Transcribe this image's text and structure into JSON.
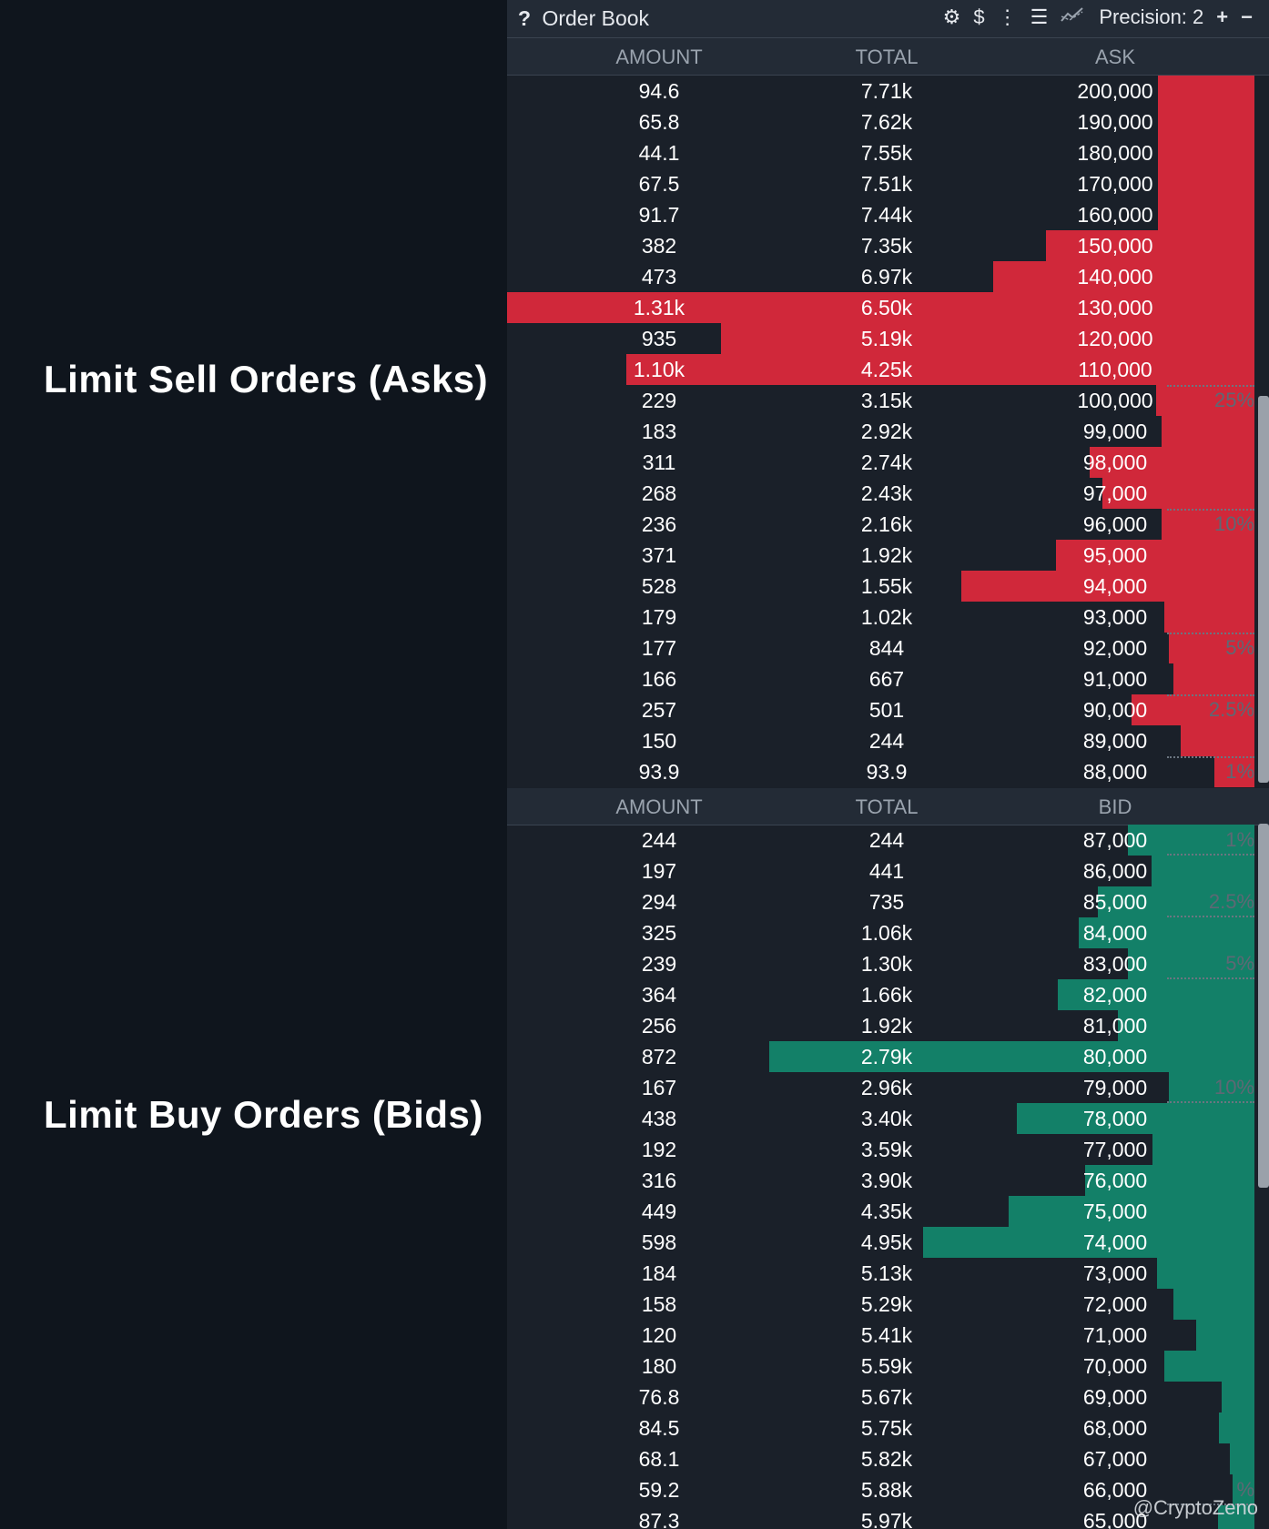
{
  "left_labels": {
    "asks": "Limit Sell Orders (Asks)",
    "bids": "Limit Buy Orders (Bids)"
  },
  "titlebar": {
    "help": "?",
    "title": "Order Book",
    "precision_label": "Precision: 2",
    "icons": [
      "gear-icon",
      "dollar-icon",
      "more-icon",
      "bars-icon",
      "depth-chart-icon",
      "plus-icon",
      "minus-icon"
    ]
  },
  "ask_header": {
    "amount": "AMOUNT",
    "total": "TOTAL",
    "price": "ASK"
  },
  "bid_header": {
    "amount": "AMOUNT",
    "total": "TOTAL",
    "price": "BID"
  },
  "colors": {
    "ask": "#d0283a",
    "bid": "#138068",
    "background": "#1a2029"
  },
  "asks": [
    {
      "amount": "94.6",
      "total": "7.71k",
      "price": "200,000",
      "depth": 0.129,
      "cum": 0.054,
      "pct": ""
    },
    {
      "amount": "65.8",
      "total": "7.62k",
      "price": "190,000",
      "depth": 0.129,
      "cum": 0.036,
      "pct": ""
    },
    {
      "amount": "44.1",
      "total": "7.55k",
      "price": "180,000",
      "depth": 0.129,
      "cum": 0.016,
      "pct": ""
    },
    {
      "amount": "67.5",
      "total": "7.51k",
      "price": "170,000",
      "depth": 0.129,
      "cum": 0.036,
      "pct": ""
    },
    {
      "amount": "91.7",
      "total": "7.44k",
      "price": "160,000",
      "depth": 0.129,
      "cum": 0.054,
      "pct": ""
    },
    {
      "amount": "382",
      "total": "7.35k",
      "price": "150,000",
      "depth": 0.279,
      "cum": 0.279,
      "pct": ""
    },
    {
      "amount": "473",
      "total": "6.97k",
      "price": "140,000",
      "depth": 0.349,
      "cum": 0.349,
      "pct": ""
    },
    {
      "amount": "1.31k",
      "total": "6.50k",
      "price": "130,000",
      "depth": 1.0,
      "cum": 1.0,
      "pct": ""
    },
    {
      "amount": "935",
      "total": "5.19k",
      "price": "120,000",
      "depth": 0.714,
      "cum": 0.714,
      "pct": ""
    },
    {
      "amount": "1.10k",
      "total": "4.25k",
      "price": "110,000",
      "depth": 0.84,
      "cum": 0.84,
      "pct": ""
    },
    {
      "amount": "229",
      "total": "3.15k",
      "price": "100,000",
      "depth": 0.131,
      "cum": 0.131,
      "pct": "25%"
    },
    {
      "amount": "183",
      "total": "2.92k",
      "price": "99,000",
      "depth": 0.124,
      "cum": 0.124,
      "pct": ""
    },
    {
      "amount": "311",
      "total": "2.74k",
      "price": "98,000",
      "depth": 0.22,
      "cum": 0.22,
      "pct": ""
    },
    {
      "amount": "268",
      "total": "2.43k",
      "price": "97,000",
      "depth": 0.204,
      "cum": 0.204,
      "pct": ""
    },
    {
      "amount": "236",
      "total": "2.16k",
      "price": "96,000",
      "depth": 0.124,
      "cum": 0.124,
      "pct": "10%"
    },
    {
      "amount": "371",
      "total": "1.92k",
      "price": "95,000",
      "depth": 0.265,
      "cum": 0.265,
      "pct": ""
    },
    {
      "amount": "528",
      "total": "1.55k",
      "price": "94,000",
      "depth": 0.392,
      "cum": 0.392,
      "pct": ""
    },
    {
      "amount": "179",
      "total": "1.02k",
      "price": "93,000",
      "depth": 0.121,
      "cum": 0.121,
      "pct": ""
    },
    {
      "amount": "177",
      "total": "844",
      "price": "92,000",
      "depth": 0.114,
      "cum": 0.114,
      "pct": "5%"
    },
    {
      "amount": "166",
      "total": "667",
      "price": "91,000",
      "depth": 0.108,
      "cum": 0.108,
      "pct": ""
    },
    {
      "amount": "257",
      "total": "501",
      "price": "90,000",
      "depth": 0.164,
      "cum": 0.164,
      "pct": "2.5%"
    },
    {
      "amount": "150",
      "total": "244",
      "price": "89,000",
      "depth": 0.099,
      "cum": 0.099,
      "pct": ""
    },
    {
      "amount": "93.9",
      "total": "93.9",
      "price": "88,000",
      "depth": 0.054,
      "cum": 0.054,
      "pct": "1%"
    }
  ],
  "bids": [
    {
      "amount": "244",
      "total": "244",
      "price": "87,000",
      "depth": 0.169,
      "pct": "1%"
    },
    {
      "amount": "197",
      "total": "441",
      "price": "86,000",
      "depth": 0.138,
      "pct": ""
    },
    {
      "amount": "294",
      "total": "735",
      "price": "85,000",
      "depth": 0.21,
      "pct": "2.5%"
    },
    {
      "amount": "325",
      "total": "1.06k",
      "price": "84,000",
      "depth": 0.235,
      "pct": ""
    },
    {
      "amount": "239",
      "total": "1.30k",
      "price": "83,000",
      "depth": 0.169,
      "pct": "5%"
    },
    {
      "amount": "364",
      "total": "1.66k",
      "price": "82,000",
      "depth": 0.263,
      "pct": ""
    },
    {
      "amount": "256",
      "total": "1.92k",
      "price": "81,000",
      "depth": 0.183,
      "pct": ""
    },
    {
      "amount": "872",
      "total": "2.79k",
      "price": "80,000",
      "depth": 0.649,
      "pct": ""
    },
    {
      "amount": "167",
      "total": "2.96k",
      "price": "79,000",
      "depth": 0.114,
      "pct": "10%"
    },
    {
      "amount": "438",
      "total": "3.40k",
      "price": "78,000",
      "depth": 0.318,
      "pct": ""
    },
    {
      "amount": "192",
      "total": "3.59k",
      "price": "77,000",
      "depth": 0.137,
      "pct": ""
    },
    {
      "amount": "316",
      "total": "3.90k",
      "price": "76,000",
      "depth": 0.227,
      "pct": ""
    },
    {
      "amount": "449",
      "total": "4.35k",
      "price": "75,000",
      "depth": 0.329,
      "pct": ""
    },
    {
      "amount": "598",
      "total": "4.95k",
      "price": "74,000",
      "depth": 0.443,
      "pct": ""
    },
    {
      "amount": "184",
      "total": "5.13k",
      "price": "73,000",
      "depth": 0.13,
      "pct": ""
    },
    {
      "amount": "158",
      "total": "5.29k",
      "price": "72,000",
      "depth": 0.109,
      "pct": ""
    },
    {
      "amount": "120",
      "total": "5.41k",
      "price": "71,000",
      "depth": 0.078,
      "pct": ""
    },
    {
      "amount": "180",
      "total": "5.59k",
      "price": "70,000",
      "depth": 0.121,
      "pct": ""
    },
    {
      "amount": "76.8",
      "total": "5.67k",
      "price": "69,000",
      "depth": 0.044,
      "pct": ""
    },
    {
      "amount": "84.5",
      "total": "5.75k",
      "price": "68,000",
      "depth": 0.047,
      "pct": ""
    },
    {
      "amount": "68.1",
      "total": "5.82k",
      "price": "67,000",
      "depth": 0.033,
      "pct": ""
    },
    {
      "amount": "59.2",
      "total": "5.88k",
      "price": "66,000",
      "depth": 0.029,
      "pct": "%"
    },
    {
      "amount": "87.3",
      "total": "5.97k",
      "price": "65,000",
      "depth": 0.049,
      "pct": ""
    }
  ],
  "watermark": "@CryptoZeno"
}
